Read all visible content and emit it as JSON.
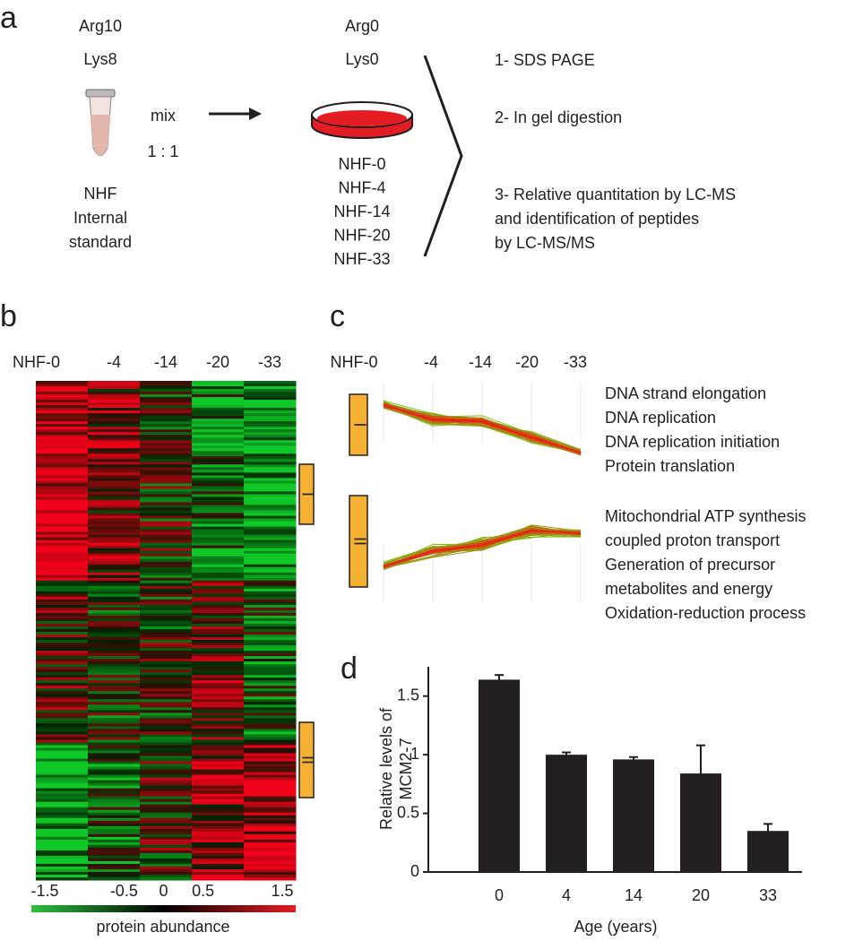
{
  "panel_a": {
    "letter": "a",
    "standard_labels": [
      "Arg10",
      "Lys8"
    ],
    "mix": "mix",
    "ratio": "1 : 1",
    "standard_name": [
      "NHF",
      "Internal",
      "standard"
    ],
    "sample_labels": [
      "Arg0",
      "Lys0"
    ],
    "samples": [
      "NHF-0",
      "NHF-4",
      "NHF-14",
      "NHF-20",
      "NHF-33"
    ],
    "steps": [
      "1- SDS PAGE",
      "2- In gel digestion",
      "3- Relative quantitation by LC-MS",
      "and identification of peptides",
      "by LC-MS/MS"
    ]
  },
  "panel_b": {
    "letter": "b",
    "columns": [
      "NHF-0",
      "-4",
      "-14",
      "-20",
      "-33"
    ],
    "clusters": [
      "I",
      "II"
    ],
    "colorbar": {
      "lim": [
        -1.5,
        1.5
      ],
      "ticks": [
        -1.5,
        -0.5,
        0,
        0.5,
        1.5
      ],
      "label": "protein abundance"
    }
  },
  "panel_c": {
    "letter": "c",
    "columns": [
      "NHF-0",
      "-4",
      "-14",
      "-20",
      "-33"
    ],
    "clusters": [
      {
        "name": "I",
        "terms": [
          "DNA strand elongation",
          "DNA replication",
          "DNA replication initiation",
          "Protein translation"
        ]
      },
      {
        "name": "II",
        "terms": [
          "Mitochondrial ATP synthesis",
          "coupled proton transport",
          "Generation of precursor",
          "metabolites and energy",
          "Oxidation-reduction process"
        ]
      }
    ]
  },
  "chart_data": {
    "type": "bar",
    "letter": "d",
    "categories": [
      "0",
      "4",
      "14",
      "20",
      "33"
    ],
    "values": [
      1.64,
      1.0,
      0.96,
      0.84,
      0.35
    ],
    "errors": [
      0.04,
      0.02,
      0.02,
      0.24,
      0.06
    ],
    "color": "#231f20",
    "ylim": [
      0,
      1.75
    ],
    "yticks": [
      0,
      0.5,
      1,
      1.5
    ],
    "xlabel": "Age (years)",
    "ylabel": [
      "Relative levels of",
      "MCM2-7"
    ]
  }
}
